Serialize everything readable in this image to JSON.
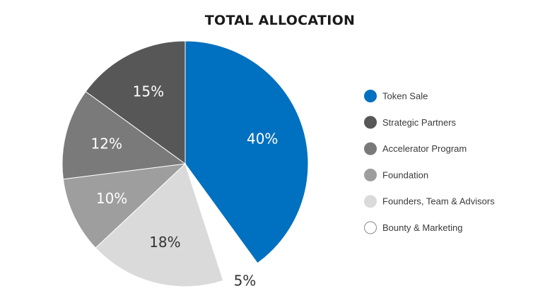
{
  "chart_data": {
    "type": "pie",
    "title": "TOTAL ALLOCATION",
    "legend_position": "right",
    "slices": [
      {
        "name": "Token Sale",
        "value": 40,
        "label": "40%",
        "color": "#0070C0",
        "label_color": "#ffffff",
        "exploded": false
      },
      {
        "name": "Bounty & Marketing",
        "value": 5,
        "label": "5%",
        "color": "#FFFFFF",
        "label_color": "#333333",
        "exploded": true
      },
      {
        "name": "Founders, Team & Advisors",
        "value": 18,
        "label": "18%",
        "color": "#DADADA",
        "label_color": "#333333",
        "exploded": false
      },
      {
        "name": "Foundation",
        "value": 10,
        "label": "10%",
        "color": "#9E9E9E",
        "label_color": "#ffffff",
        "exploded": false
      },
      {
        "name": "Accelerator Program",
        "value": 12,
        "label": "12%",
        "color": "#7A7A7A",
        "label_color": "#ffffff",
        "exploded": false
      },
      {
        "name": "Strategic Partners",
        "value": 15,
        "label": "15%",
        "color": "#575757",
        "label_color": "#ffffff",
        "exploded": false
      }
    ],
    "legend": [
      {
        "name": "Token Sale",
        "color": "#0070C0"
      },
      {
        "name": "Strategic Partners",
        "color": "#575757"
      },
      {
        "name": "Accelerator Program",
        "color": "#7A7A7A"
      },
      {
        "name": "Foundation",
        "color": "#9E9E9E"
      },
      {
        "name": "Founders, Team & Advisors",
        "color": "#DADADA"
      },
      {
        "name": "Bounty & Marketing",
        "color": "#FFFFFF"
      }
    ]
  }
}
